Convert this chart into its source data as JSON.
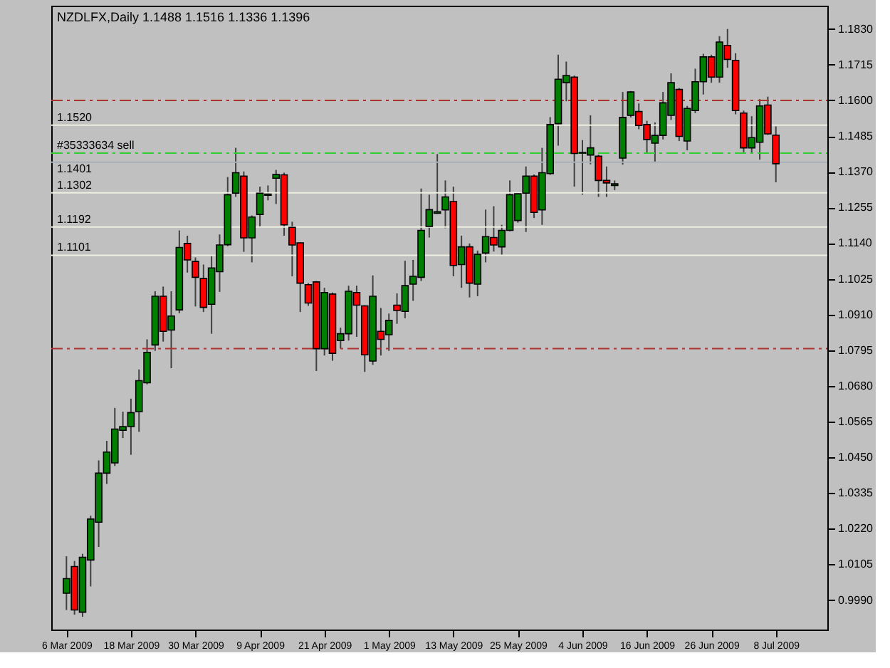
{
  "chart_data": {
    "type": "candlestick",
    "title": "NZDLFX,Daily  1.1488 1.1516 1.1336 1.1396",
    "categories": [
      "6 Mar 2009",
      null,
      null,
      null,
      null,
      null,
      null,
      null,
      "18 Mar 2009",
      null,
      null,
      null,
      null,
      null,
      null,
      null,
      "30 Mar 2009",
      null,
      null,
      null,
      null,
      null,
      null,
      null,
      "9 Apr 2009",
      null,
      null,
      null,
      null,
      null,
      null,
      null,
      "21 Apr 2009",
      null,
      null,
      null,
      null,
      null,
      null,
      null,
      "1 May 2009",
      null,
      null,
      null,
      null,
      null,
      null,
      null,
      "13 May 2009",
      null,
      null,
      null,
      null,
      null,
      null,
      null,
      "25 May 2009",
      null,
      null,
      null,
      null,
      null,
      null,
      null,
      "4 Jun 2009",
      null,
      null,
      null,
      null,
      null,
      null,
      null,
      "16 Jun 2009",
      null,
      null,
      null,
      null,
      null,
      null,
      null,
      "26 Jun 2009",
      null,
      null,
      null,
      null,
      null,
      null,
      null,
      "8 Jul 2009"
    ],
    "ohlc": [
      [
        1.0012,
        1.0131,
        0.9958,
        1.0059
      ],
      [
        1.0098,
        1.0116,
        0.9943,
        0.9958
      ],
      [
        0.9951,
        1.0139,
        0.9936,
        1.0128
      ],
      [
        1.0119,
        1.0262,
        1.0034,
        1.0251
      ],
      [
        1.0241,
        1.044,
        1.0161,
        1.0399
      ],
      [
        1.0399,
        1.0503,
        1.0364,
        1.0467
      ],
      [
        1.0432,
        1.0609,
        1.0422,
        1.0541
      ],
      [
        1.0537,
        1.0597,
        1.0512,
        1.0549
      ],
      [
        1.0549,
        1.0639,
        1.0458,
        1.0594
      ],
      [
        1.0597,
        1.0733,
        1.0532,
        1.0697
      ],
      [
        1.069,
        1.083,
        1.0685,
        1.0788
      ],
      [
        1.0812,
        1.0985,
        1.0793,
        1.0969
      ],
      [
        1.0969,
        1.1,
        1.0823,
        1.0856
      ],
      [
        1.086,
        1.0985,
        1.0737,
        1.0905
      ],
      [
        1.0925,
        1.1181,
        1.0914,
        1.1126
      ],
      [
        1.1139,
        1.1164,
        1.1045,
        1.1086
      ],
      [
        1.1081,
        1.1094,
        1.0936,
        1.103
      ],
      [
        1.1026,
        1.1071,
        1.0918,
        1.0933
      ],
      [
        1.0943,
        1.1098,
        1.0848,
        1.106
      ],
      [
        1.1048,
        1.1168,
        1.0983,
        1.1134
      ],
      [
        1.1135,
        1.1353,
        1.113,
        1.1296
      ],
      [
        1.1301,
        1.1447,
        1.1289,
        1.1367
      ],
      [
        1.1356,
        1.1371,
        1.1112,
        1.1157
      ],
      [
        1.1157,
        1.1229,
        1.1078,
        1.1224
      ],
      [
        1.1232,
        1.1322,
        1.1191,
        1.1301
      ],
      [
        1.1294,
        1.1326,
        1.1278,
        1.1298
      ],
      [
        1.1349,
        1.1376,
        1.1266,
        1.1361
      ],
      [
        1.136,
        1.1367,
        1.1164,
        1.1199
      ],
      [
        1.1191,
        1.1209,
        1.1033,
        1.1134
      ],
      [
        1.1141,
        1.1143,
        1.0918,
        1.1011
      ],
      [
        1.1006,
        1.1011,
        1.0938,
        1.0947
      ],
      [
        1.1015,
        1.1018,
        1.0728,
        1.08
      ],
      [
        1.08,
        1.0996,
        1.0778,
        1.0981
      ],
      [
        1.0976,
        1.0981,
        1.0761,
        1.0785
      ],
      [
        1.0826,
        1.0868,
        1.08,
        1.0848
      ],
      [
        1.0848,
        1.1003,
        1.0826,
        1.0985
      ],
      [
        1.0981,
        1.1003,
        1.0838,
        1.094
      ],
      [
        1.0938,
        1.094,
        1.0725,
        1.078
      ],
      [
        1.076,
        1.1036,
        1.0748,
        1.0969
      ],
      [
        1.0856,
        1.0931,
        1.0778,
        1.083
      ],
      [
        1.0845,
        1.0913,
        1.0793,
        1.0891
      ],
      [
        1.094,
        1.0978,
        1.088,
        1.0923
      ],
      [
        1.092,
        1.1083,
        1.0898,
        1.1003
      ],
      [
        1.1008,
        1.1086,
        1.0954,
        1.1033
      ],
      [
        1.103,
        1.1316,
        1.1018,
        1.1181
      ],
      [
        1.1194,
        1.1296,
        1.1158,
        1.1248
      ],
      [
        1.1236,
        1.1427,
        1.1234,
        1.1241
      ],
      [
        1.1247,
        1.1342,
        1.1188,
        1.1289
      ],
      [
        1.1274,
        1.1322,
        1.1033,
        1.1068
      ],
      [
        1.1071,
        1.1164,
        1.0996,
        1.1128
      ],
      [
        1.1128,
        1.1139,
        1.0965,
        1.1011
      ],
      [
        1.1008,
        1.1116,
        1.0969,
        1.1104
      ],
      [
        1.1108,
        1.1248,
        1.1078,
        1.1161
      ],
      [
        1.1158,
        1.1259,
        1.1113,
        1.1134
      ],
      [
        1.1128,
        1.1199,
        1.1101,
        1.1181
      ],
      [
        1.1181,
        1.1342,
        1.1178,
        1.1296
      ],
      [
        1.1213,
        1.1304,
        1.1206,
        1.1299
      ],
      [
        1.1301,
        1.1387,
        1.1176,
        1.1356
      ],
      [
        1.1356,
        1.1361,
        1.1221,
        1.1239
      ],
      [
        1.1247,
        1.1447,
        1.1199,
        1.1367
      ],
      [
        1.1364,
        1.1546,
        1.136,
        1.1522
      ],
      [
        1.1525,
        1.1747,
        1.1454,
        1.1668
      ],
      [
        1.1657,
        1.1725,
        1.1597,
        1.168
      ],
      [
        1.1675,
        1.168,
        1.1322,
        1.1429
      ],
      [
        1.1432,
        1.1472,
        1.1296,
        1.143
      ],
      [
        1.1424,
        1.1552,
        1.1394,
        1.1447
      ],
      [
        1.142,
        1.1425,
        1.1289,
        1.1342
      ],
      [
        1.1342,
        1.1387,
        1.1289,
        1.1334
      ],
      [
        1.1326,
        1.1342,
        1.1311,
        1.1331
      ],
      [
        1.1414,
        1.1627,
        1.1393,
        1.1545
      ],
      [
        1.1552,
        1.163,
        1.1545,
        1.1627
      ],
      [
        1.1564,
        1.159,
        1.1507,
        1.1519
      ],
      [
        1.1522,
        1.1534,
        1.1432,
        1.1474
      ],
      [
        1.1462,
        1.1529,
        1.1402,
        1.1487
      ],
      [
        1.1487,
        1.1627,
        1.1474,
        1.1592
      ],
      [
        1.1552,
        1.1687,
        1.1537,
        1.1657
      ],
      [
        1.1635,
        1.164,
        1.1469,
        1.1484
      ],
      [
        1.1469,
        1.1582,
        1.1439,
        1.1574
      ],
      [
        1.1567,
        1.1702,
        1.1559,
        1.166
      ],
      [
        1.166,
        1.175,
        1.1619,
        1.174
      ],
      [
        1.174,
        1.1747,
        1.1657,
        1.1675
      ],
      [
        1.1675,
        1.1807,
        1.1657,
        1.1788
      ],
      [
        1.1777,
        1.183,
        1.1705,
        1.1732
      ],
      [
        1.1729,
        1.1752,
        1.1555,
        1.1567
      ],
      [
        1.1559,
        1.1567,
        1.1433,
        1.1447
      ],
      [
        1.1447,
        1.1549,
        1.1432,
        1.148
      ],
      [
        1.1465,
        1.1604,
        1.1409,
        1.1582
      ],
      [
        1.1585,
        1.1612,
        1.1489,
        1.1492
      ],
      [
        1.1488,
        1.1516,
        1.1336,
        1.1396
      ]
    ],
    "ylim": [
      0.9895,
      1.1905
    ],
    "yticks": [
      {
        "value": 1.183,
        "label": "1.1830"
      },
      {
        "value": 1.1715,
        "label": "1.1715"
      },
      {
        "value": 1.16,
        "label": "1.1600"
      },
      {
        "value": 1.1485,
        "label": "1.1485"
      },
      {
        "value": 1.137,
        "label": "1.1370"
      },
      {
        "value": 1.1255,
        "label": "1.1255"
      },
      {
        "value": 1.114,
        "label": "1.1140"
      },
      {
        "value": 1.1025,
        "label": "1.1025"
      },
      {
        "value": 1.091,
        "label": "1.0910"
      },
      {
        "value": 1.0795,
        "label": "1.0795"
      },
      {
        "value": 1.068,
        "label": "1.0680"
      },
      {
        "value": 1.0565,
        "label": "1.0565"
      },
      {
        "value": 1.045,
        "label": "1.0450"
      },
      {
        "value": 1.0335,
        "label": "1.0335"
      },
      {
        "value": 1.022,
        "label": "1.0220"
      },
      {
        "value": 1.0105,
        "label": "1.0105"
      },
      {
        "value": 0.999,
        "label": "0.9990"
      }
    ],
    "ref_lines": [
      {
        "axis": "y",
        "value": 1.16,
        "color": "#b03030",
        "line_style": "dashed"
      },
      {
        "axis": "y",
        "value": 1.08,
        "color": "#b03030",
        "line_style": "dashed"
      },
      {
        "axis": "y",
        "value": 1.143,
        "label": "#35333634 sell",
        "color": "#32cd32",
        "line_style": "dashed"
      },
      {
        "axis": "y",
        "value": 1.152,
        "label": "1.1520",
        "color": "#eeeee0",
        "line_style": "solid"
      },
      {
        "axis": "y",
        "value": 1.1401,
        "label": "1.1401",
        "color": "#a8b0b8",
        "line_style": "solid"
      },
      {
        "axis": "y",
        "value": 1.1302,
        "label": "1.1302",
        "color": "#eeeee0",
        "line_style": "solid"
      },
      {
        "axis": "y",
        "value": 1.1192,
        "label": "1.1192",
        "color": "#eeeee0",
        "line_style": "solid"
      },
      {
        "axis": "y",
        "value": 1.1101,
        "label": "1.1101",
        "color": "#eeeee0",
        "line_style": "solid"
      }
    ]
  }
}
